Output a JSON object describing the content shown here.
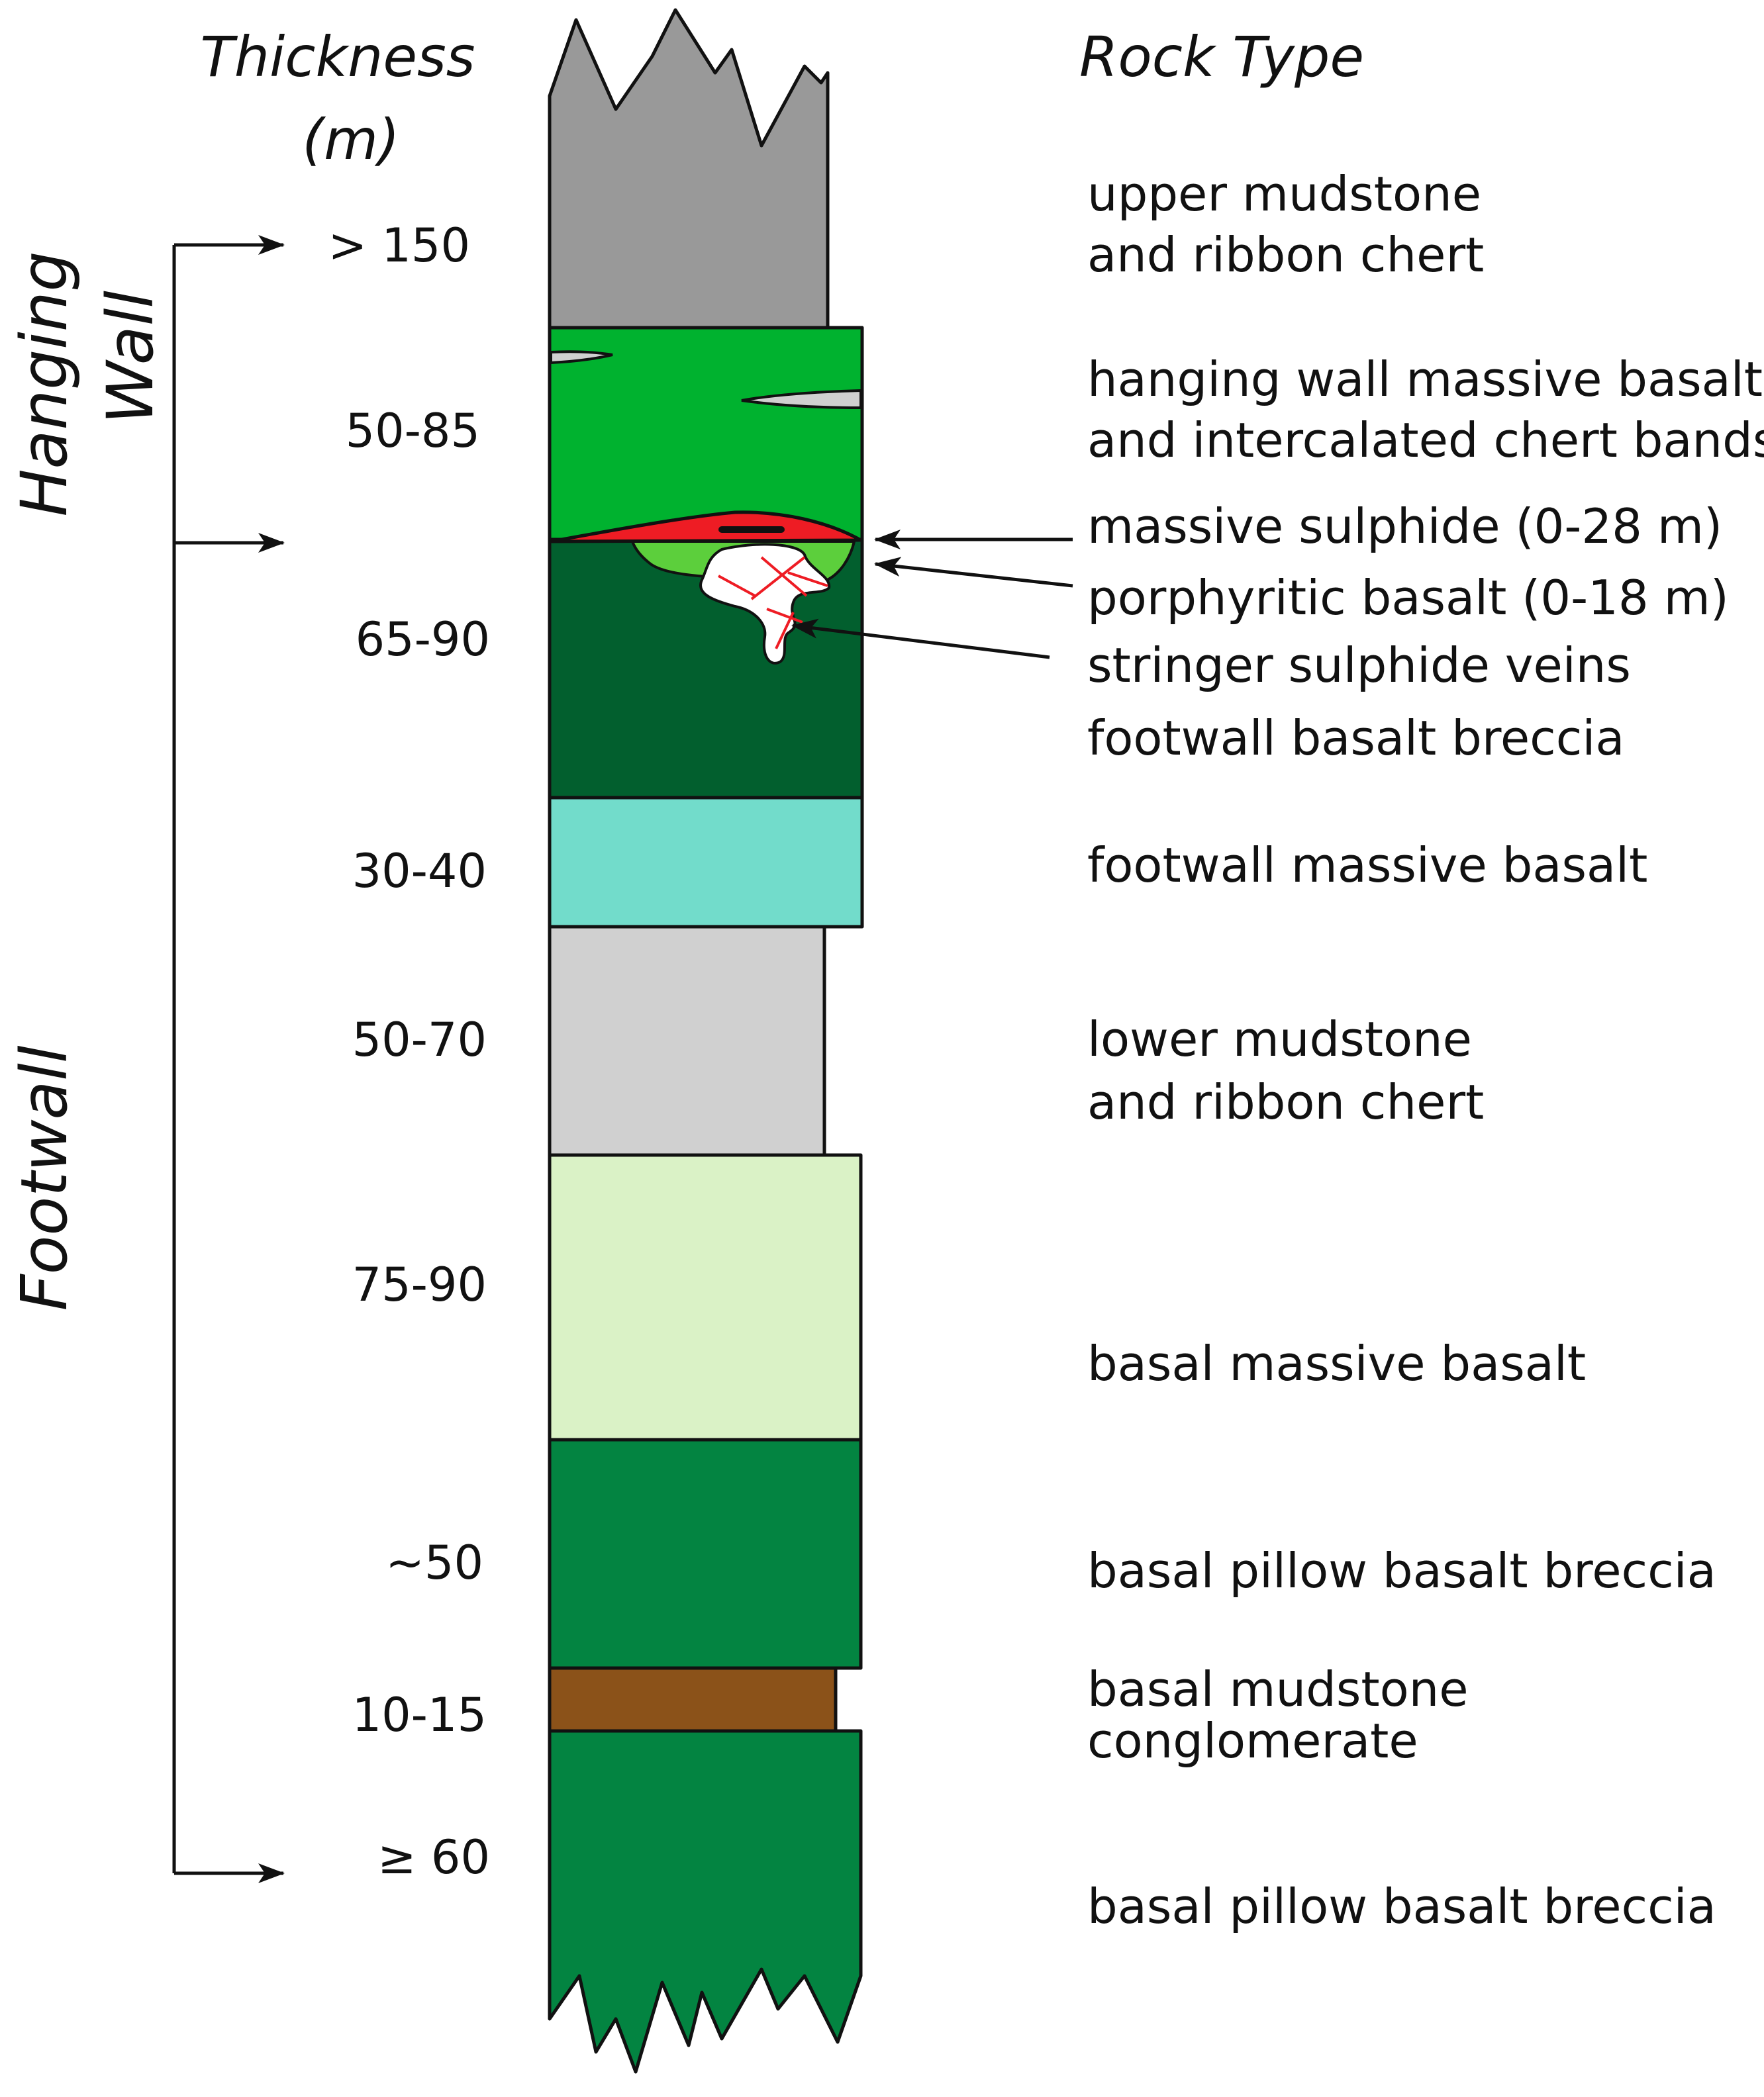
{
  "headers": {
    "thickness_line1": "Thickness",
    "thickness_line2": "(m)",
    "rock_type": "Rock Type"
  },
  "side_labels": {
    "hanging_line1": "Hanging",
    "hanging_line2": "Wall",
    "footwall": "Footwall"
  },
  "thickness": [
    "> 150",
    "50-85",
    "65-90",
    "30-40",
    "50-70",
    "75-90",
    "~50",
    "10-15",
    "≥ 60"
  ],
  "rock_types": {
    "upper_mudstone_1": "upper mudstone",
    "upper_mudstone_2": "and ribbon chert",
    "hw_basalt_1": "hanging wall massive basalt",
    "hw_basalt_2": "and intercalated chert bands",
    "massive_sulphide": "massive sulphide (0-28 m)",
    "porphyritic_basalt": "porphyritic basalt (0-18 m)",
    "stringer_veins": "stringer sulphide veins",
    "fw_breccia": "footwall basalt breccia",
    "fw_massive_basalt": "footwall massive basalt",
    "lower_mudstone_1": "lower mudstone",
    "lower_mudstone_2": "and ribbon chert",
    "basal_massive_basalt": "basal massive basalt",
    "basal_pillow_1": "basal pillow basalt breccia",
    "basal_mudstone_1": "basal mudstone",
    "basal_mudstone_2": "conglomerate",
    "basal_pillow_2": "basal pillow basalt breccia"
  },
  "colors": {
    "upper_mudstone": "#999999",
    "hw_basalt": "#00b22f",
    "massive_sulphide": "#ee1c24",
    "porphyritic_basalt": "#5ccf3c",
    "fw_breccia": "#025f2e",
    "fw_massive_basalt": "#72dccb",
    "lower_mudstone": "#d0d0d0",
    "basal_massive_basalt": "#daf2c6",
    "basal_pillow": "#038441",
    "basal_mudstone": "#8b5219"
  }
}
